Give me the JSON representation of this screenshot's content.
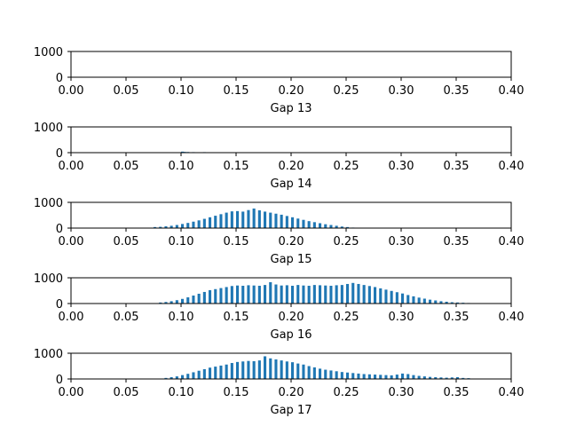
{
  "chart_data": [
    {
      "type": "bar",
      "xlabel": "Gap 13",
      "xlim": [
        0,
        0.4
      ],
      "ylim": [
        0,
        1000
      ],
      "xticks": [
        "0.00",
        "0.05",
        "0.10",
        "0.15",
        "0.20",
        "0.25",
        "0.30",
        "0.35",
        "0.40"
      ],
      "yticks": [
        "0",
        "1000"
      ],
      "bar_color": "#1f77b4",
      "bin_width": 0.0025,
      "bins": []
    },
    {
      "type": "bar",
      "xlabel": "Gap 14",
      "xlim": [
        0,
        0.4
      ],
      "ylim": [
        0,
        1000
      ],
      "xticks": [
        "0.00",
        "0.05",
        "0.10",
        "0.15",
        "0.20",
        "0.25",
        "0.30",
        "0.35",
        "0.40"
      ],
      "yticks": [
        "0",
        "1000"
      ],
      "bar_color": "#1f77b4",
      "bin_width": 0.0025,
      "bins": [
        [
          0.1,
          40
        ],
        [
          0.102,
          30
        ],
        [
          0.105,
          25
        ],
        [
          0.11,
          20
        ],
        [
          0.113,
          15
        ],
        [
          0.12,
          20
        ]
      ]
    },
    {
      "type": "bar",
      "xlabel": "Gap 15",
      "xlim": [
        0,
        0.4
      ],
      "ylim": [
        0,
        1000
      ],
      "xticks": [
        "0.00",
        "0.05",
        "0.10",
        "0.15",
        "0.20",
        "0.25",
        "0.30",
        "0.35",
        "0.40"
      ],
      "yticks": [
        "0",
        "1000"
      ],
      "bar_color": "#1f77b4",
      "bin_width": 0.0025,
      "bins": [
        [
          0.075,
          40
        ],
        [
          0.08,
          50
        ],
        [
          0.085,
          70
        ],
        [
          0.09,
          90
        ],
        [
          0.095,
          120
        ],
        [
          0.1,
          160
        ],
        [
          0.105,
          200
        ],
        [
          0.11,
          250
        ],
        [
          0.115,
          300
        ],
        [
          0.12,
          360
        ],
        [
          0.125,
          420
        ],
        [
          0.13,
          480
        ],
        [
          0.135,
          540
        ],
        [
          0.14,
          600
        ],
        [
          0.145,
          650
        ],
        [
          0.15,
          660
        ],
        [
          0.155,
          640
        ],
        [
          0.16,
          700
        ],
        [
          0.165,
          760
        ],
        [
          0.17,
          690
        ],
        [
          0.175,
          640
        ],
        [
          0.18,
          600
        ],
        [
          0.185,
          560
        ],
        [
          0.19,
          520
        ],
        [
          0.195,
          470
        ],
        [
          0.2,
          420
        ],
        [
          0.205,
          370
        ],
        [
          0.21,
          320
        ],
        [
          0.215,
          270
        ],
        [
          0.22,
          230
        ],
        [
          0.225,
          190
        ],
        [
          0.23,
          150
        ],
        [
          0.235,
          120
        ],
        [
          0.24,
          90
        ],
        [
          0.245,
          60
        ],
        [
          0.25,
          40
        ],
        [
          0.255,
          20
        ]
      ]
    },
    {
      "type": "bar",
      "xlabel": "Gap 16",
      "xlim": [
        0,
        0.4
      ],
      "ylim": [
        0,
        1000
      ],
      "xticks": [
        "0.00",
        "0.05",
        "0.10",
        "0.15",
        "0.20",
        "0.25",
        "0.30",
        "0.35",
        "0.40"
      ],
      "yticks": [
        "0",
        "1000"
      ],
      "bar_color": "#1f77b4",
      "bin_width": 0.0025,
      "bins": [
        [
          0.08,
          40
        ],
        [
          0.085,
          60
        ],
        [
          0.09,
          90
        ],
        [
          0.095,
          130
        ],
        [
          0.1,
          180
        ],
        [
          0.105,
          240
        ],
        [
          0.11,
          310
        ],
        [
          0.115,
          380
        ],
        [
          0.12,
          450
        ],
        [
          0.125,
          520
        ],
        [
          0.13,
          560
        ],
        [
          0.135,
          600
        ],
        [
          0.14,
          640
        ],
        [
          0.145,
          680
        ],
        [
          0.15,
          700
        ],
        [
          0.155,
          690
        ],
        [
          0.16,
          710
        ],
        [
          0.165,
          700
        ],
        [
          0.17,
          690
        ],
        [
          0.175,
          720
        ],
        [
          0.18,
          830
        ],
        [
          0.185,
          740
        ],
        [
          0.19,
          700
        ],
        [
          0.195,
          710
        ],
        [
          0.2,
          690
        ],
        [
          0.205,
          720
        ],
        [
          0.21,
          700
        ],
        [
          0.215,
          690
        ],
        [
          0.22,
          720
        ],
        [
          0.225,
          710
        ],
        [
          0.23,
          700
        ],
        [
          0.235,
          690
        ],
        [
          0.24,
          710
        ],
        [
          0.245,
          720
        ],
        [
          0.25,
          760
        ],
        [
          0.255,
          800
        ],
        [
          0.26,
          760
        ],
        [
          0.265,
          720
        ],
        [
          0.27,
          680
        ],
        [
          0.275,
          640
        ],
        [
          0.28,
          590
        ],
        [
          0.285,
          540
        ],
        [
          0.29,
          490
        ],
        [
          0.295,
          440
        ],
        [
          0.3,
          390
        ],
        [
          0.305,
          330
        ],
        [
          0.31,
          280
        ],
        [
          0.315,
          230
        ],
        [
          0.32,
          190
        ],
        [
          0.325,
          150
        ],
        [
          0.33,
          120
        ],
        [
          0.335,
          90
        ],
        [
          0.34,
          70
        ],
        [
          0.345,
          50
        ],
        [
          0.35,
          40
        ],
        [
          0.355,
          30
        ],
        [
          0.36,
          20
        ]
      ]
    },
    {
      "type": "bar",
      "xlabel": "Gap 17",
      "xlim": [
        0,
        0.4
      ],
      "ylim": [
        0,
        1000
      ],
      "xticks": [
        "0.00",
        "0.05",
        "0.10",
        "0.15",
        "0.20",
        "0.25",
        "0.30",
        "0.35",
        "0.40"
      ],
      "yticks": [
        "0",
        "1000"
      ],
      "bar_color": "#1f77b4",
      "bin_width": 0.0025,
      "bins": [
        [
          0.085,
          40
        ],
        [
          0.09,
          70
        ],
        [
          0.095,
          100
        ],
        [
          0.1,
          150
        ],
        [
          0.105,
          200
        ],
        [
          0.11,
          260
        ],
        [
          0.115,
          320
        ],
        [
          0.12,
          380
        ],
        [
          0.125,
          440
        ],
        [
          0.13,
          480
        ],
        [
          0.135,
          520
        ],
        [
          0.14,
          560
        ],
        [
          0.145,
          620
        ],
        [
          0.15,
          660
        ],
        [
          0.155,
          680
        ],
        [
          0.16,
          700
        ],
        [
          0.165,
          690
        ],
        [
          0.17,
          720
        ],
        [
          0.175,
          880
        ],
        [
          0.18,
          800
        ],
        [
          0.185,
          760
        ],
        [
          0.19,
          720
        ],
        [
          0.195,
          680
        ],
        [
          0.2,
          650
        ],
        [
          0.205,
          600
        ],
        [
          0.21,
          560
        ],
        [
          0.215,
          500
        ],
        [
          0.22,
          450
        ],
        [
          0.225,
          400
        ],
        [
          0.23,
          360
        ],
        [
          0.235,
          330
        ],
        [
          0.24,
          300
        ],
        [
          0.245,
          270
        ],
        [
          0.25,
          250
        ],
        [
          0.255,
          230
        ],
        [
          0.26,
          210
        ],
        [
          0.265,
          190
        ],
        [
          0.27,
          180
        ],
        [
          0.275,
          170
        ],
        [
          0.28,
          160
        ],
        [
          0.285,
          150
        ],
        [
          0.29,
          140
        ],
        [
          0.295,
          170
        ],
        [
          0.3,
          210
        ],
        [
          0.305,
          190
        ],
        [
          0.31,
          150
        ],
        [
          0.315,
          120
        ],
        [
          0.32,
          100
        ],
        [
          0.325,
          80
        ],
        [
          0.33,
          70
        ],
        [
          0.335,
          60
        ],
        [
          0.34,
          50
        ],
        [
          0.345,
          60
        ],
        [
          0.35,
          70
        ],
        [
          0.355,
          40
        ],
        [
          0.36,
          30
        ]
      ]
    }
  ]
}
